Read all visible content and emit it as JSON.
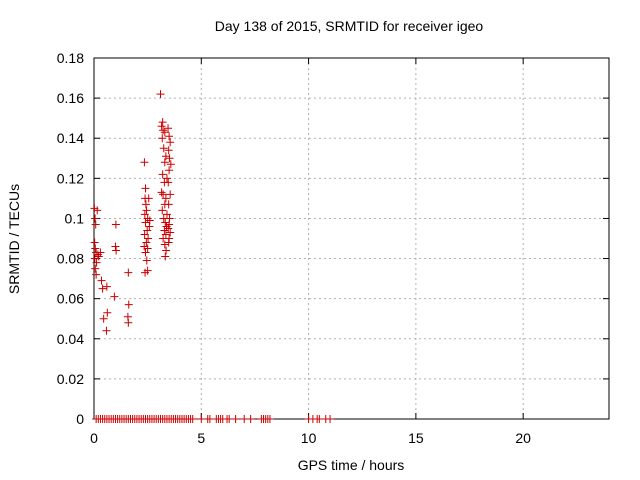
{
  "chart_data": {
    "type": "scatter",
    "title": "Day 138 of 2015, SRMTID for receiver igeo",
    "xlabel": "GPS time / hours",
    "ylabel": "SRMTID / TECUs",
    "xlim": [
      0,
      24
    ],
    "ylim": [
      0,
      0.18
    ],
    "x_ticks": [
      0,
      5,
      10,
      15,
      20
    ],
    "x_tick_labels": [
      "0",
      "5",
      "10",
      "15",
      "20"
    ],
    "y_ticks": [
      0,
      0.02,
      0.04,
      0.06,
      0.08,
      0.1,
      0.12,
      0.14,
      0.16,
      0.18
    ],
    "y_tick_labels": [
      "0",
      "0.02",
      "0.04",
      "0.06",
      "0.08",
      "0.1",
      "0.12",
      "0.14",
      "0.16",
      "0.18"
    ],
    "grid": true,
    "marker": "+",
    "color": "#cc0000",
    "series": [
      {
        "points": [
          [
            0.02,
            0.105
          ],
          [
            0.05,
            0.1
          ],
          [
            0.08,
            0.097
          ],
          [
            0.03,
            0.088
          ],
          [
            0.06,
            0.085
          ],
          [
            0.1,
            0.083
          ],
          [
            0.04,
            0.08
          ],
          [
            0.12,
            0.078
          ],
          [
            0.06,
            0.075
          ],
          [
            0.1,
            0.072
          ],
          [
            0.15,
            0.104
          ],
          [
            0.18,
            0.082
          ],
          [
            0.22,
            0.081
          ],
          [
            0.3,
            0.083
          ],
          [
            0.35,
            0.069
          ],
          [
            0.4,
            0.065
          ],
          [
            0.45,
            0.05
          ],
          [
            0.6,
            0.066
          ],
          [
            0.62,
            0.053
          ],
          [
            0.58,
            0.044
          ],
          [
            0.95,
            0.061
          ],
          [
            1.02,
            0.097
          ],
          [
            1.0,
            0.086
          ],
          [
            1.03,
            0.084
          ],
          [
            1.6,
            0.073
          ],
          [
            1.62,
            0.057
          ],
          [
            1.58,
            0.051
          ],
          [
            1.6,
            0.048
          ],
          [
            2.35,
            0.128
          ],
          [
            2.4,
            0.115
          ],
          [
            2.38,
            0.11
          ],
          [
            2.42,
            0.107
          ],
          [
            2.45,
            0.104
          ],
          [
            2.37,
            0.102
          ],
          [
            2.5,
            0.1
          ],
          [
            2.4,
            0.098
          ],
          [
            2.48,
            0.094
          ],
          [
            2.36,
            0.092
          ],
          [
            2.52,
            0.09
          ],
          [
            2.44,
            0.088
          ],
          [
            2.34,
            0.086
          ],
          [
            2.5,
            0.085
          ],
          [
            2.4,
            0.083
          ],
          [
            2.46,
            0.079
          ],
          [
            2.38,
            0.073
          ],
          [
            2.5,
            0.074
          ],
          [
            2.55,
            0.11
          ],
          [
            2.6,
            0.099
          ],
          [
            2.58,
            0.096
          ],
          [
            3.1,
            0.162
          ],
          [
            3.2,
            0.148
          ],
          [
            3.15,
            0.146
          ],
          [
            3.22,
            0.144
          ],
          [
            3.3,
            0.143
          ],
          [
            3.18,
            0.14
          ],
          [
            3.25,
            0.135
          ],
          [
            3.35,
            0.131
          ],
          [
            3.3,
            0.128
          ],
          [
            3.2,
            0.122
          ],
          [
            3.4,
            0.12
          ],
          [
            3.28,
            0.118
          ],
          [
            3.15,
            0.113
          ],
          [
            3.22,
            0.112
          ],
          [
            3.35,
            0.11
          ],
          [
            3.3,
            0.107
          ],
          [
            3.18,
            0.104
          ],
          [
            3.4,
            0.102
          ],
          [
            3.25,
            0.1
          ],
          [
            3.32,
            0.098
          ],
          [
            3.38,
            0.096
          ],
          [
            3.28,
            0.094
          ],
          [
            3.35,
            0.092
          ],
          [
            3.22,
            0.09
          ],
          [
            3.3,
            0.087
          ],
          [
            3.36,
            0.084
          ],
          [
            3.32,
            0.081
          ],
          [
            3.45,
            0.145
          ],
          [
            3.5,
            0.141
          ],
          [
            3.55,
            0.138
          ],
          [
            3.48,
            0.134
          ],
          [
            3.52,
            0.13
          ],
          [
            3.58,
            0.127
          ],
          [
            3.5,
            0.124
          ],
          [
            3.46,
            0.118
          ],
          [
            3.55,
            0.112
          ],
          [
            3.48,
            0.107
          ],
          [
            3.52,
            0.1
          ],
          [
            3.5,
            0.097
          ],
          [
            3.46,
            0.095
          ],
          [
            3.55,
            0.093
          ],
          [
            3.5,
            0.09
          ],
          [
            3.48,
            0.088
          ]
        ]
      },
      {
        "x": [
          0.1,
          0.2,
          0.3,
          0.4,
          0.5,
          0.6,
          0.7,
          0.8,
          0.9,
          1.0,
          1.1,
          1.2,
          1.3,
          1.4,
          1.5,
          1.6,
          1.7,
          1.8,
          1.9,
          2.0,
          2.1,
          2.2,
          2.3,
          2.4,
          2.5,
          2.6,
          2.7,
          2.8,
          2.9,
          3.0,
          3.1,
          3.2,
          3.3,
          3.4,
          3.5,
          3.6,
          3.7,
          3.8,
          3.9,
          4.0,
          4.1,
          4.2,
          4.3,
          4.4,
          4.5,
          4.6,
          5.0,
          5.3,
          5.4,
          5.7,
          5.8,
          5.9,
          6.0,
          6.2,
          6.3,
          6.6,
          7.0,
          7.3,
          7.8,
          7.9,
          8.0,
          8.1,
          8.2,
          10.0,
          10.2,
          10.4,
          10.5,
          10.8,
          11.0
        ],
        "y": 0
      }
    ]
  }
}
